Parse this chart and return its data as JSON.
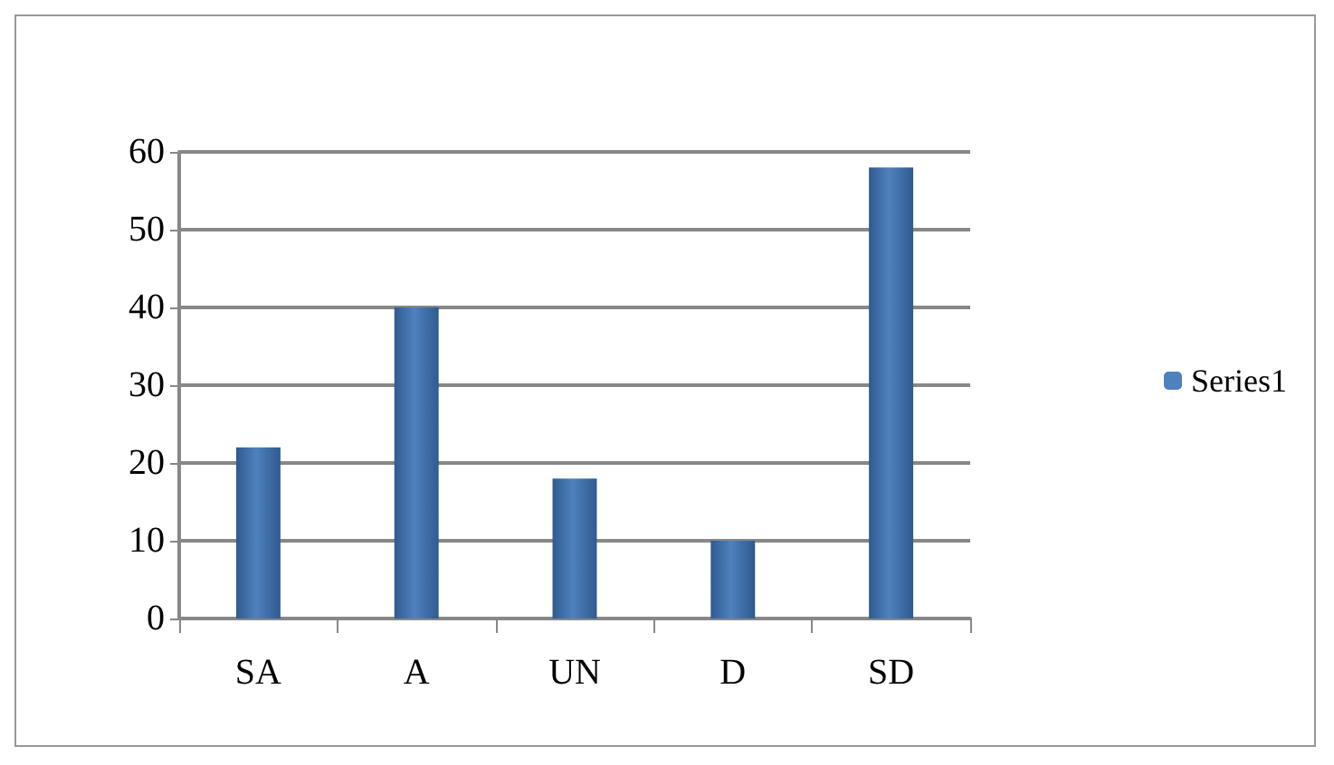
{
  "chart_data": {
    "type": "bar",
    "categories": [
      "SA",
      "A",
      "UN",
      "D",
      "SD"
    ],
    "series": [
      {
        "name": "Series1",
        "color": "#4f81bd",
        "values": [
          22,
          40,
          18,
          10,
          58
        ]
      }
    ],
    "ylim": [
      0,
      60
    ],
    "yticks": [
      0,
      10,
      20,
      30,
      40,
      50,
      60
    ],
    "grid": "y",
    "legend": "right"
  }
}
